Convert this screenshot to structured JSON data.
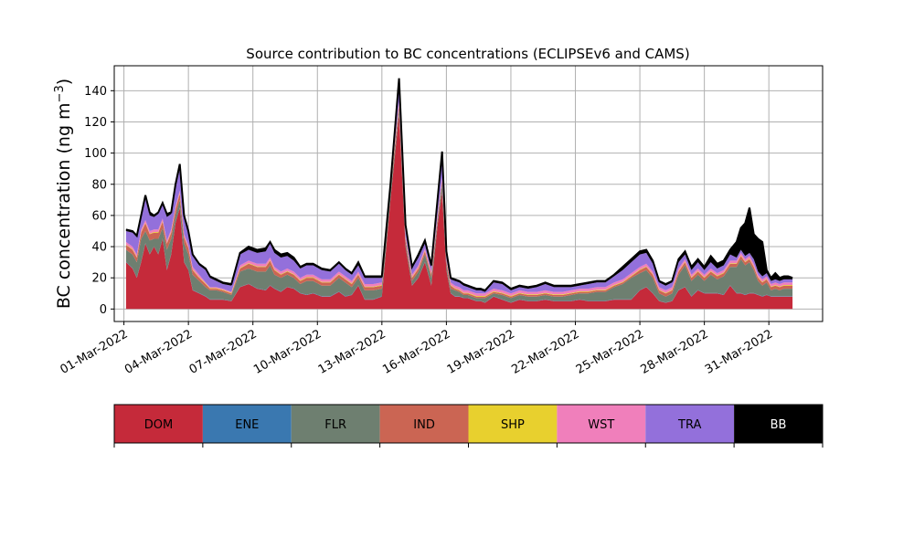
{
  "chart_data": {
    "type": "area",
    "stacked": true,
    "title": "Source contribution to BC concentrations (ECLIPSEv6 and CAMS)",
    "ylabel": "BC concentration (ng m",
    "ylabel_sup": "−3",
    "ylabel_close": ")",
    "xlabel": "",
    "grid": true,
    "ylim": [
      -8,
      156
    ],
    "xlim_days": [
      -0.45,
      32.5
    ],
    "yticks": [
      0,
      20,
      40,
      60,
      80,
      100,
      120,
      140
    ],
    "xticks": [
      {
        "day": 0,
        "label": "01-Mar-2022"
      },
      {
        "day": 3,
        "label": "04-Mar-2022"
      },
      {
        "day": 6,
        "label": "07-Mar-2022"
      },
      {
        "day": 9,
        "label": "10-Mar-2022"
      },
      {
        "day": 12,
        "label": "13-Mar-2022"
      },
      {
        "day": 15,
        "label": "16-Mar-2022"
      },
      {
        "day": 18,
        "label": "19-Mar-2022"
      },
      {
        "day": 21,
        "label": "22-Mar-2022"
      },
      {
        "day": 24,
        "label": "25-Mar-2022"
      },
      {
        "day": 27,
        "label": "28-Mar-2022"
      },
      {
        "day": 30,
        "label": "31-Mar-2022"
      }
    ],
    "series_order": [
      "DOM",
      "ENE",
      "FLR",
      "IND",
      "SHP",
      "WST",
      "TRA",
      "BB"
    ],
    "colors": {
      "DOM": "#c52a3a",
      "ENE": "#3a78b0",
      "FLR": "#6e7f70",
      "IND": "#cb6553",
      "SHP": "#e8d02e",
      "WST": "#f07fbb",
      "TRA": "#9370db",
      "BB": "#000000"
    },
    "legend": [
      {
        "label": "DOM",
        "color": "#c52a3a",
        "text_color": "#000000"
      },
      {
        "label": "ENE",
        "color": "#3a78b0",
        "text_color": "#000000"
      },
      {
        "label": "FLR",
        "color": "#6e7f70",
        "text_color": "#000000"
      },
      {
        "label": "IND",
        "color": "#cb6553",
        "text_color": "#000000"
      },
      {
        "label": "SHP",
        "color": "#e8d02e",
        "text_color": "#000000"
      },
      {
        "label": "WST",
        "color": "#f07fbb",
        "text_color": "#000000"
      },
      {
        "label": "TRA",
        "color": "#9370db",
        "text_color": "#000000"
      },
      {
        "label": "BB",
        "color": "#000000",
        "text_color": "#ffffff"
      }
    ],
    "cumulative_tops": {
      "x_days": [
        0.1,
        0.4,
        0.6,
        0.8,
        1.0,
        1.2,
        1.4,
        1.6,
        1.8,
        2.0,
        2.2,
        2.4,
        2.6,
        2.8,
        3.0,
        3.2,
        3.5,
        3.8,
        4.0,
        4.3,
        4.6,
        5.0,
        5.4,
        5.8,
        6.2,
        6.6,
        6.8,
        7.0,
        7.3,
        7.6,
        7.9,
        8.2,
        8.5,
        8.8,
        9.2,
        9.6,
        10.0,
        10.3,
        10.6,
        10.9,
        11.2,
        11.6,
        12.0,
        12.4,
        12.8,
        13.1,
        13.4,
        13.7,
        14.0,
        14.3,
        14.6,
        14.8,
        15.0,
        15.2,
        15.4,
        15.6,
        15.8,
        16.0,
        16.2,
        16.4,
        16.6,
        16.8,
        17.2,
        17.6,
        18.0,
        18.4,
        18.8,
        19.2,
        19.6,
        20.0,
        20.4,
        20.8,
        21.2,
        21.6,
        22.0,
        22.4,
        22.8,
        23.2,
        23.6,
        24.0,
        24.3,
        24.6,
        24.9,
        25.2,
        25.5,
        25.8,
        26.1,
        26.4,
        26.7,
        27.0,
        27.3,
        27.6,
        27.9,
        28.2,
        28.5,
        28.7,
        28.9,
        29.1,
        29.3,
        29.5,
        29.7,
        29.9,
        30.1,
        30.3,
        30.5,
        30.7,
        30.9,
        31.1
      ],
      "DOM": [
        30,
        26,
        20,
        30,
        42,
        35,
        40,
        35,
        45,
        25,
        35,
        55,
        65,
        30,
        25,
        12,
        10,
        8,
        6,
        6,
        6,
        5,
        14,
        16,
        13,
        12,
        15,
        13,
        11,
        14,
        13,
        10,
        9,
        10,
        8,
        8,
        11,
        8,
        9,
        15,
        6,
        6,
        8,
        70,
        125,
        40,
        15,
        20,
        30,
        15,
        55,
        75,
        25,
        10,
        8,
        8,
        7,
        7,
        6,
        5,
        5,
        4,
        8,
        6,
        4,
        6,
        5,
        5,
        6,
        5,
        5,
        5,
        6,
        5,
        5,
        5,
        6,
        6,
        6,
        12,
        14,
        10,
        5,
        4,
        5,
        12,
        14,
        8,
        12,
        10,
        10,
        10,
        9,
        15,
        10,
        10,
        9,
        10,
        10,
        9,
        8,
        9,
        8,
        8,
        8,
        8,
        8,
        8
      ],
      "ENE": [
        30.2,
        26.2,
        20.2,
        30.2,
        42.2,
        35.2,
        40.2,
        35.2,
        45.2,
        25.2,
        35.2,
        55.2,
        65.2,
        30.2,
        25.2,
        12.2,
        10.2,
        8.2,
        6.2,
        6.2,
        6.2,
        5.2,
        14.2,
        16.2,
        13.2,
        12.2,
        15.2,
        13.2,
        11.2,
        14.2,
        13.2,
        10.2,
        9.2,
        10.2,
        8.2,
        8.2,
        11.2,
        8.2,
        9.2,
        15.2,
        6.2,
        6.2,
        8.2,
        70.2,
        125.2,
        40.2,
        15.2,
        20.2,
        30.2,
        15.2,
        55.2,
        75.2,
        25.2,
        10.2,
        8.2,
        8.2,
        7.2,
        7.2,
        6.2,
        5.2,
        5.2,
        4.2,
        8.2,
        6.2,
        4.2,
        6.2,
        5.2,
        5.2,
        6.2,
        5.2,
        5.2,
        5.2,
        6.2,
        5.2,
        5.2,
        5.2,
        6.2,
        6.2,
        6.2,
        12.2,
        14.2,
        10.2,
        5.2,
        4.2,
        5.2,
        12.2,
        14.2,
        8.2,
        12.2,
        10.2,
        10.2,
        10.2,
        9.2,
        15.2,
        10.2,
        10.2,
        9.2,
        10.2,
        10.2,
        9.2,
        8.2,
        9.2,
        8.2,
        8.2,
        8.2,
        8.2,
        8.2,
        8.2
      ],
      "FLR": [
        38,
        35,
        30,
        45,
        50,
        44,
        45,
        45,
        52,
        38,
        45,
        60,
        70,
        42,
        35,
        22,
        18,
        14,
        12,
        12,
        11,
        9,
        24,
        26,
        24,
        24,
        28,
        22,
        20,
        22,
        20,
        16,
        18,
        18,
        15,
        15,
        20,
        17,
        14,
        20,
        12,
        12,
        13,
        75,
        128,
        43,
        18,
        24,
        35,
        20,
        58,
        80,
        28,
        13,
        12,
        11,
        9,
        9,
        8,
        7,
        7,
        7,
        10,
        9,
        7,
        9,
        8,
        8,
        9,
        8,
        8,
        9,
        10,
        10,
        11,
        11,
        14,
        16,
        20,
        23,
        25,
        20,
        10,
        8,
        10,
        22,
        28,
        18,
        22,
        18,
        22,
        19,
        21,
        27,
        27,
        32,
        28,
        30,
        25,
        18,
        15,
        17,
        12,
        13,
        12,
        13,
        13,
        13
      ],
      "IND": [
        41,
        38,
        33,
        49,
        55,
        48,
        49,
        49,
        56,
        42,
        49,
        64,
        74,
        46,
        39,
        25,
        20,
        16,
        13,
        13,
        12,
        10,
        26,
        29,
        27,
        27,
        31,
        25,
        22,
        24,
        22,
        18,
        20,
        20,
        17,
        17,
        22,
        19,
        16,
        22,
        14,
        14,
        15,
        78,
        131,
        45,
        20,
        26,
        37,
        22,
        60,
        82,
        30,
        15,
        13,
        12,
        10,
        10,
        9,
        8,
        8,
        8,
        11,
        10,
        8,
        10,
        9,
        9,
        10,
        9,
        9,
        10,
        11,
        11,
        12,
        12,
        15,
        17,
        21,
        25,
        27,
        22,
        12,
        10,
        12,
        24,
        30,
        20,
        24,
        20,
        24,
        21,
        23,
        29,
        29,
        34,
        30,
        32,
        27,
        20,
        17,
        19,
        14,
        15,
        14,
        15,
        15,
        15
      ],
      "SHP": [
        41.4,
        38.4,
        33.4,
        49.4,
        55.4,
        48.4,
        49.4,
        49.4,
        56.4,
        42.4,
        49.4,
        64.4,
        74.4,
        46.4,
        39.4,
        25.4,
        20.4,
        16.4,
        13.4,
        13.4,
        12.4,
        10.4,
        26.4,
        29.4,
        27.4,
        27.4,
        31.4,
        25.4,
        22.4,
        24.4,
        22.4,
        18.4,
        20.4,
        20.4,
        17.4,
        17.4,
        22.4,
        19.4,
        16.4,
        22.4,
        14.4,
        14.4,
        15.4,
        78.4,
        131.4,
        45.4,
        20.4,
        26.4,
        37.4,
        22.4,
        60.4,
        82.4,
        30.4,
        15.4,
        13.4,
        12.4,
        10.4,
        10.4,
        9.4,
        8.4,
        8.4,
        8.4,
        11.4,
        10.4,
        8.4,
        10.4,
        9.4,
        9.4,
        10.4,
        9.4,
        9.4,
        10.4,
        11.4,
        11.4,
        12.4,
        12.4,
        15.4,
        17.4,
        21.4,
        25.4,
        27.4,
        22.4,
        12.4,
        10.4,
        12.4,
        24.4,
        30.4,
        20.4,
        24.4,
        20.4,
        24.4,
        21.4,
        23.4,
        29.4,
        29.4,
        34.4,
        30.4,
        32.4,
        27.4,
        20.4,
        17.4,
        19.4,
        14.4,
        15.4,
        14.4,
        15.4,
        15.4,
        15.4
      ],
      "WST": [
        43,
        40,
        35,
        51,
        57,
        50,
        51,
        51,
        58,
        44,
        51,
        66,
        76,
        48,
        41,
        27,
        22,
        17,
        14,
        14,
        13,
        11,
        28,
        31,
        29,
        29,
        33,
        27,
        24,
        26,
        24,
        20,
        22,
        22,
        19,
        19,
        24,
        21,
        18,
        24,
        16,
        16,
        17,
        80,
        133,
        47,
        22,
        28,
        39,
        24,
        62,
        84,
        32,
        17,
        15,
        14,
        12,
        12,
        11,
        10,
        10,
        10,
        13,
        12,
        10,
        12,
        11,
        11,
        12,
        11,
        11,
        12,
        13,
        13,
        14,
        14,
        17,
        19,
        23,
        27,
        29,
        24,
        14,
        12,
        14,
        26,
        32,
        22,
        26,
        22,
        26,
        23,
        25,
        31,
        31,
        36,
        32,
        34,
        29,
        22,
        19,
        21,
        16,
        17,
        16,
        17,
        17,
        17
      ],
      "TRA": [
        50,
        49,
        46,
        58,
        71,
        60,
        59,
        61,
        67,
        59,
        61,
        77,
        90,
        58,
        48,
        34,
        28,
        25,
        20,
        18,
        16,
        15,
        35,
        38,
        36,
        37,
        42,
        36,
        33,
        34,
        31,
        26,
        28,
        28,
        25,
        24,
        29,
        25,
        22,
        28,
        20,
        20,
        20,
        80,
        145,
        52,
        26,
        33,
        42,
        27,
        70,
        97,
        35,
        19,
        18,
        17,
        15,
        14,
        13,
        12,
        12,
        11,
        17,
        16,
        12,
        14,
        13,
        14,
        16,
        14,
        14,
        14,
        15,
        16,
        17,
        17,
        21,
        25,
        30,
        35,
        36,
        29,
        17,
        15,
        17,
        30,
        35,
        25,
        30,
        25,
        30,
        26,
        28,
        35,
        33,
        38,
        34,
        36,
        32,
        24,
        21,
        23,
        18,
        19,
        18,
        19,
        19,
        19
      ],
      "BB": [
        51,
        50,
        47,
        60,
        73,
        62,
        60,
        62,
        68,
        61,
        62,
        80,
        93,
        60,
        50,
        35,
        29,
        26,
        21,
        19,
        17,
        16,
        36,
        40,
        38,
        39,
        43,
        38,
        35,
        36,
        33,
        27,
        29,
        29,
        26,
        25,
        30,
        26,
        23,
        30,
        21,
        21,
        21,
        80,
        148,
        54,
        27,
        35,
        44,
        28,
        72,
        101,
        37,
        20,
        19,
        18,
        16,
        15,
        14,
        13,
        13,
        12,
        18,
        17,
        13,
        15,
        14,
        15,
        17,
        15,
        15,
        15,
        16,
        17,
        18,
        18,
        22,
        27,
        32,
        37,
        38,
        31,
        18,
        16,
        18,
        32,
        37,
        27,
        32,
        27,
        34,
        29,
        31,
        38,
        43,
        52,
        55,
        65,
        48,
        45,
        43,
        25,
        20,
        23,
        20,
        21,
        21,
        20
      ]
    }
  }
}
